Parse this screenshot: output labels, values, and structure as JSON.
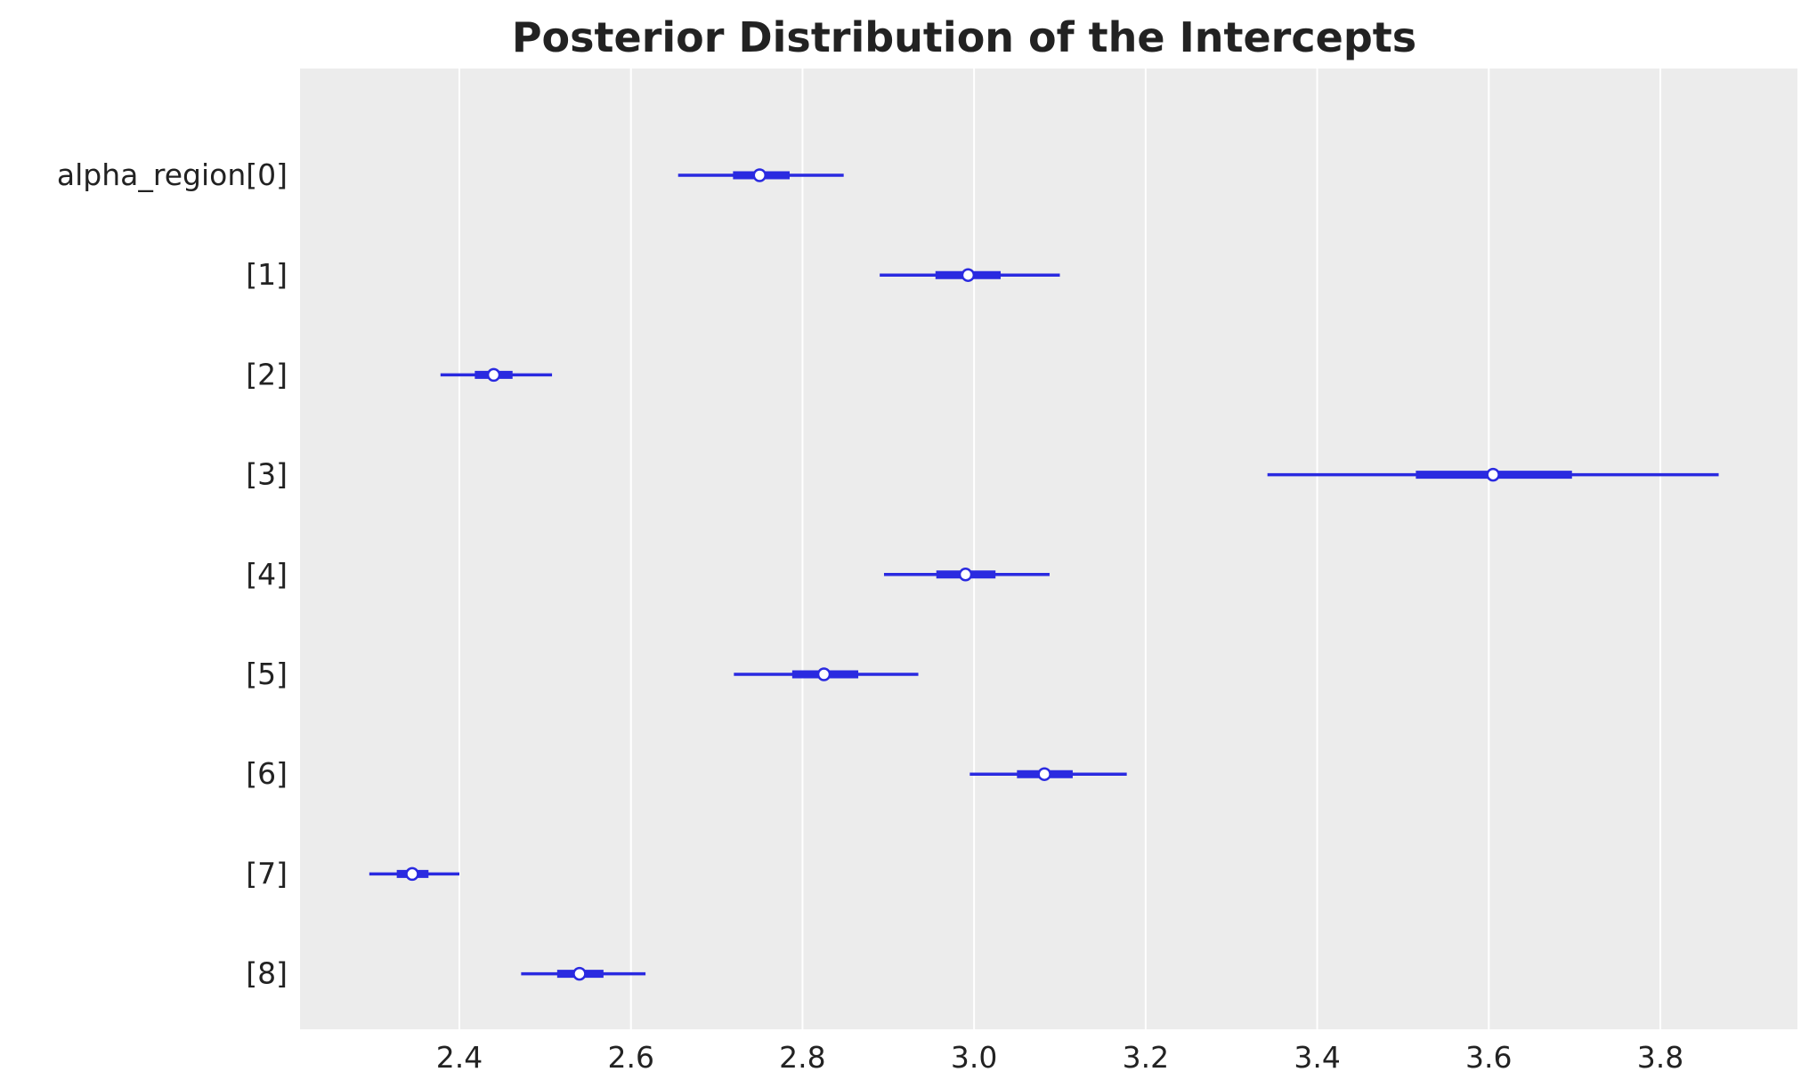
{
  "chart_data": {
    "type": "forest",
    "title": "Posterior Distribution of the Intercepts",
    "xlabel": "",
    "ylabel": "",
    "variable": "alpha_region",
    "xlim": [
      2.22,
      3.94
    ],
    "xticks": [
      2.4,
      2.6,
      2.8,
      3.0,
      3.2,
      3.4,
      3.6,
      3.8
    ],
    "xtick_labels": [
      "2.4",
      "2.6",
      "2.8",
      "3.0",
      "3.2",
      "3.4",
      "3.6",
      "3.8"
    ],
    "grid": "vertical",
    "colors": {
      "background": "#ececec",
      "grid": "#ffffff",
      "series": "#2a2ae0",
      "marker_fill": "#ffffff"
    },
    "rows": [
      {
        "label": "alpha_region[0]",
        "mean": 2.75,
        "hdi_low": 2.655,
        "hdi_high": 2.848,
        "iqr_low": 2.719,
        "iqr_high": 2.785
      },
      {
        "label": "[1]",
        "mean": 2.993,
        "hdi_low": 2.89,
        "hdi_high": 3.1,
        "iqr_low": 2.955,
        "iqr_high": 3.031
      },
      {
        "label": "[2]",
        "mean": 2.44,
        "hdi_low": 2.378,
        "hdi_high": 2.508,
        "iqr_low": 2.418,
        "iqr_high": 2.462
      },
      {
        "label": "[3]",
        "mean": 3.605,
        "hdi_low": 3.342,
        "hdi_high": 3.868,
        "iqr_low": 3.515,
        "iqr_high": 3.697
      },
      {
        "label": "[4]",
        "mean": 2.99,
        "hdi_low": 2.895,
        "hdi_high": 3.088,
        "iqr_low": 2.956,
        "iqr_high": 3.025
      },
      {
        "label": "[5]",
        "mean": 2.825,
        "hdi_low": 2.72,
        "hdi_high": 2.935,
        "iqr_low": 2.788,
        "iqr_high": 2.865
      },
      {
        "label": "[6]",
        "mean": 3.082,
        "hdi_low": 2.995,
        "hdi_high": 3.178,
        "iqr_low": 3.05,
        "iqr_high": 3.115
      },
      {
        "label": "[7]",
        "mean": 2.345,
        "hdi_low": 2.295,
        "hdi_high": 2.4,
        "iqr_low": 2.327,
        "iqr_high": 2.364
      },
      {
        "label": "[8]",
        "mean": 2.54,
        "hdi_low": 2.472,
        "hdi_high": 2.617,
        "iqr_low": 2.514,
        "iqr_high": 2.568
      }
    ]
  }
}
